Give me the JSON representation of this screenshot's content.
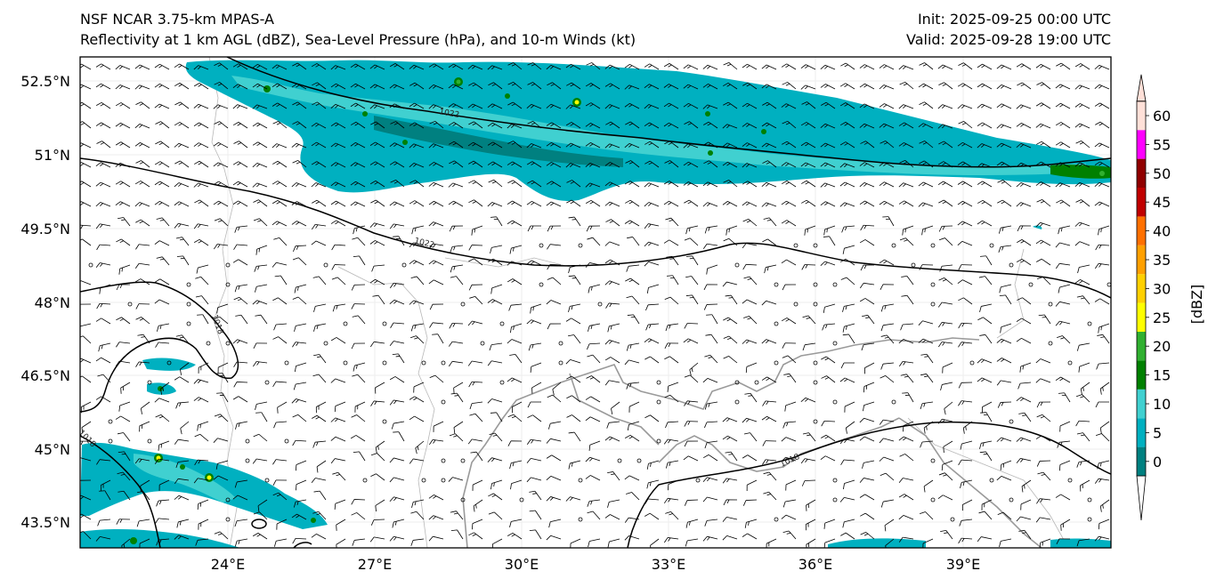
{
  "header": {
    "model": "NSF NCAR 3.75-km MPAS-A",
    "fields": "Reflectivity at 1 km AGL (dBZ), Sea-Level Pressure (hPa), and 10-m Winds (kt)",
    "init": "Init: 2025-09-25 00:00 UTC",
    "valid": "Valid: 2025-09-28 19:00 UTC"
  },
  "map": {
    "lat_labels": [
      "52.5°N",
      "51°N",
      "49.5°N",
      "48°N",
      "46.5°N",
      "45°N",
      "43.5°N"
    ],
    "lon_labels": [
      "24°E",
      "27°E",
      "30°E",
      "33°E",
      "36°E",
      "39°E"
    ],
    "isobar_labels": [
      "1022",
      "1022",
      "1018",
      "1018",
      "1018"
    ]
  },
  "colorbar": {
    "unit_label": "[dBZ]",
    "ticks": [
      "0",
      "5",
      "10",
      "15",
      "20",
      "25",
      "30",
      "35",
      "40",
      "45",
      "50",
      "55",
      "60"
    ],
    "colors": [
      "#008080",
      "#00b0c0",
      "#40d0d0",
      "#008000",
      "#30b030",
      "#ffff00",
      "#ffd000",
      "#ffa000",
      "#ff7000",
      "#c00000",
      "#900000",
      "#ff00ff",
      "#ffe0d8"
    ]
  }
}
